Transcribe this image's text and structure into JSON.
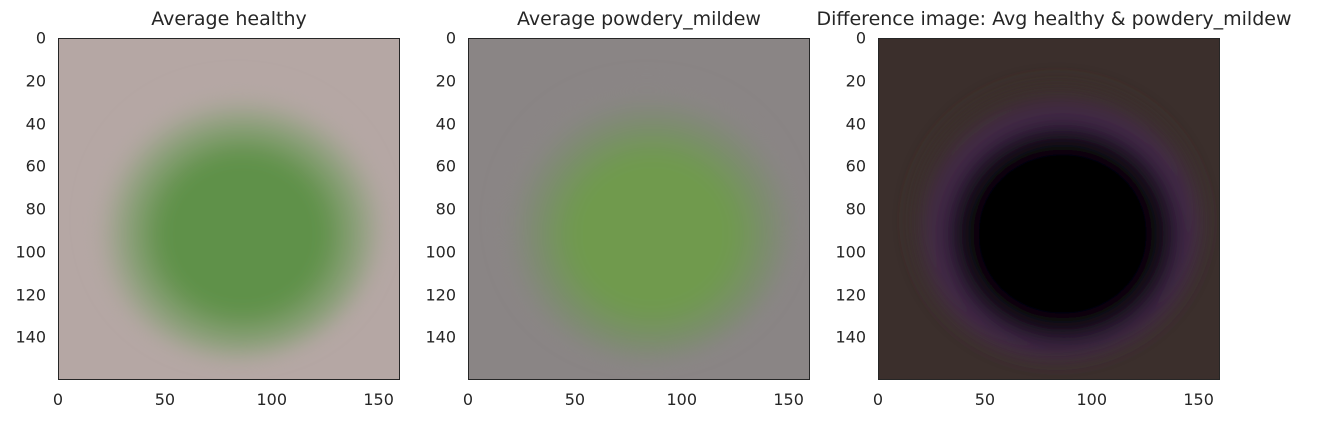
{
  "chart_data": [
    {
      "type": "heatmap",
      "title": "Average healthy",
      "xlabel": "",
      "ylabel": "",
      "xlim": [
        0,
        160
      ],
      "ylim": [
        160,
        0
      ],
      "x_ticks": [
        0,
        50,
        100,
        150
      ],
      "y_ticks": [
        0,
        20,
        40,
        60,
        80,
        100,
        120,
        140
      ],
      "grid": false,
      "colors": {
        "background": "#b5a7a4",
        "mid": "#8ca07a",
        "center": "#5f9148"
      }
    },
    {
      "type": "heatmap",
      "title": "Average powdery_mildew",
      "xlabel": "",
      "ylabel": "",
      "xlim": [
        0,
        160
      ],
      "ylim": [
        160,
        0
      ],
      "x_ticks": [
        0,
        50,
        100,
        150
      ],
      "y_ticks": [
        0,
        20,
        40,
        60,
        80,
        100,
        120,
        140
      ],
      "grid": false,
      "colors": {
        "background": "#8a8585",
        "mid": "#7c8c6e",
        "center": "#6f9a4e"
      }
    },
    {
      "type": "heatmap",
      "title": "Difference image: Avg healthy & powdery_mildew",
      "xlabel": "",
      "ylabel": "",
      "xlim": [
        0,
        160
      ],
      "ylim": [
        160,
        0
      ],
      "x_ticks": [
        0,
        50,
        100,
        150
      ],
      "y_ticks": [
        0,
        20,
        40,
        60,
        80,
        100,
        120,
        140
      ],
      "grid": false,
      "colors": {
        "background": "#3b2f2c",
        "mid": "#241a2a",
        "center": "#050205",
        "rim": "#4a2a55"
      }
    }
  ]
}
